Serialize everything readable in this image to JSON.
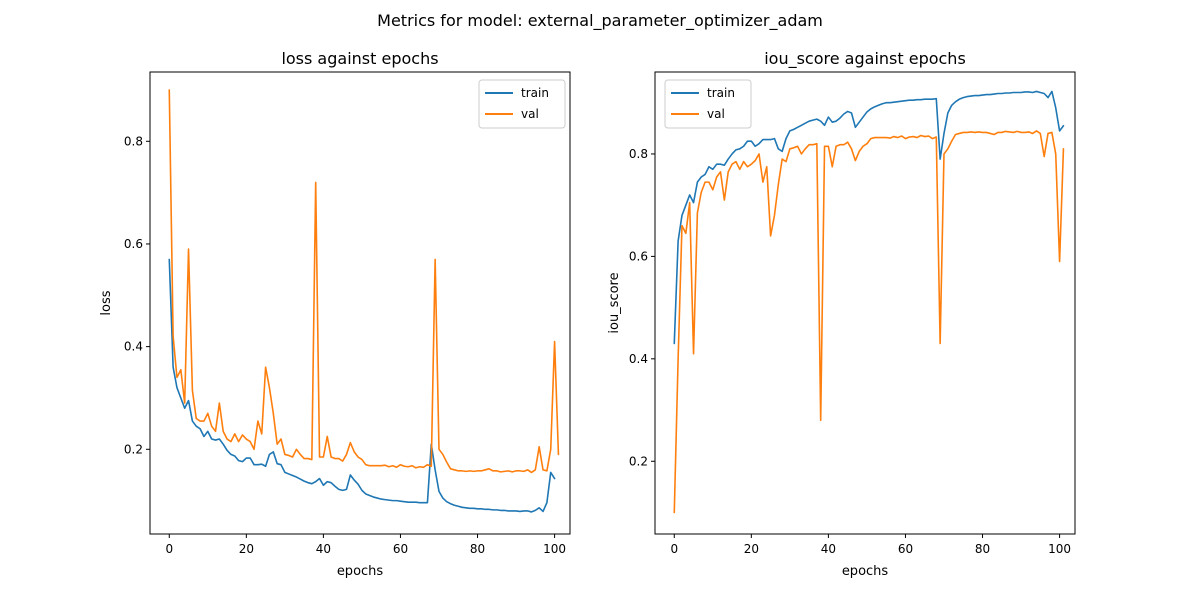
{
  "figure": {
    "suptitle": "Metrics for model: external_parameter_optimizer_adam"
  },
  "colors": {
    "train": "#1f77b4",
    "val": "#ff7f0e"
  },
  "chart_data": [
    {
      "type": "line",
      "title": "loss against epochs",
      "xlabel": "epochs",
      "ylabel": "loss",
      "xlim": [
        -5,
        104
      ],
      "ylim": [
        0.035,
        0.935
      ],
      "xticks": [
        0,
        20,
        40,
        60,
        80,
        100
      ],
      "yticks": [
        0.2,
        0.4,
        0.6,
        0.8
      ],
      "grid": false,
      "legend": "top-right",
      "series": [
        {
          "name": "train",
          "color": "#1f77b4",
          "values": [
            0.57,
            0.36,
            0.32,
            0.3,
            0.28,
            0.295,
            0.255,
            0.245,
            0.24,
            0.225,
            0.235,
            0.22,
            0.218,
            0.22,
            0.21,
            0.198,
            0.19,
            0.187,
            0.178,
            0.176,
            0.183,
            0.183,
            0.17,
            0.17,
            0.171,
            0.167,
            0.19,
            0.195,
            0.172,
            0.17,
            0.155,
            0.152,
            0.149,
            0.146,
            0.142,
            0.138,
            0.135,
            0.133,
            0.137,
            0.143,
            0.13,
            0.137,
            0.135,
            0.128,
            0.122,
            0.12,
            0.122,
            0.15,
            0.14,
            0.132,
            0.12,
            0.113,
            0.11,
            0.107,
            0.105,
            0.103,
            0.102,
            0.101,
            0.1,
            0.1,
            0.099,
            0.098,
            0.097,
            0.097,
            0.097,
            0.096,
            0.096,
            0.096,
            0.21,
            0.16,
            0.118,
            0.105,
            0.098,
            0.094,
            0.091,
            0.089,
            0.087,
            0.086,
            0.085,
            0.085,
            0.084,
            0.084,
            0.083,
            0.083,
            0.082,
            0.082,
            0.081,
            0.081,
            0.08,
            0.08,
            0.08,
            0.079,
            0.08,
            0.08,
            0.078,
            0.081,
            0.086,
            0.079,
            0.096,
            0.155,
            0.143
          ]
        },
        {
          "name": "val",
          "color": "#ff7f0e",
          "values": [
            0.9,
            0.42,
            0.34,
            0.355,
            0.29,
            0.59,
            0.315,
            0.26,
            0.255,
            0.255,
            0.27,
            0.245,
            0.235,
            0.29,
            0.235,
            0.22,
            0.215,
            0.23,
            0.215,
            0.228,
            0.22,
            0.215,
            0.2,
            0.255,
            0.23,
            0.36,
            0.32,
            0.27,
            0.21,
            0.22,
            0.19,
            0.188,
            0.185,
            0.2,
            0.19,
            0.182,
            0.182,
            0.18,
            0.72,
            0.185,
            0.185,
            0.225,
            0.185,
            0.182,
            0.182,
            0.177,
            0.19,
            0.213,
            0.195,
            0.185,
            0.18,
            0.17,
            0.168,
            0.168,
            0.168,
            0.168,
            0.169,
            0.166,
            0.168,
            0.165,
            0.17,
            0.167,
            0.166,
            0.168,
            0.164,
            0.166,
            0.165,
            0.17,
            0.167,
            0.57,
            0.2,
            0.19,
            0.175,
            0.162,
            0.16,
            0.158,
            0.158,
            0.157,
            0.158,
            0.157,
            0.158,
            0.158,
            0.16,
            0.162,
            0.158,
            0.158,
            0.156,
            0.157,
            0.158,
            0.156,
            0.158,
            0.158,
            0.157,
            0.16,
            0.155,
            0.16,
            0.205,
            0.16,
            0.158,
            0.2,
            0.41,
            0.19
          ]
        }
      ]
    },
    {
      "type": "line",
      "title": "iou_score against epochs",
      "xlabel": "epochs",
      "ylabel": "iou_score",
      "xlim": [
        -5,
        104
      ],
      "ylim": [
        0.058,
        0.96
      ],
      "xticks": [
        0,
        20,
        40,
        60,
        80,
        100
      ],
      "yticks": [
        0.2,
        0.4,
        0.6,
        0.8
      ],
      "grid": false,
      "legend": "top-left",
      "series": [
        {
          "name": "train",
          "color": "#1f77b4",
          "values": [
            0.43,
            0.63,
            0.68,
            0.7,
            0.72,
            0.705,
            0.745,
            0.755,
            0.76,
            0.775,
            0.77,
            0.78,
            0.78,
            0.778,
            0.79,
            0.8,
            0.808,
            0.81,
            0.815,
            0.825,
            0.825,
            0.815,
            0.82,
            0.828,
            0.828,
            0.828,
            0.83,
            0.81,
            0.805,
            0.83,
            0.845,
            0.848,
            0.852,
            0.856,
            0.86,
            0.864,
            0.866,
            0.868,
            0.864,
            0.856,
            0.872,
            0.862,
            0.864,
            0.87,
            0.878,
            0.883,
            0.88,
            0.852,
            0.862,
            0.872,
            0.882,
            0.888,
            0.892,
            0.895,
            0.898,
            0.9,
            0.9,
            0.901,
            0.902,
            0.903,
            0.904,
            0.905,
            0.905,
            0.906,
            0.906,
            0.907,
            0.907,
            0.907,
            0.908,
            0.79,
            0.84,
            0.88,
            0.895,
            0.902,
            0.907,
            0.91,
            0.912,
            0.913,
            0.914,
            0.914,
            0.915,
            0.916,
            0.916,
            0.917,
            0.918,
            0.918,
            0.919,
            0.919,
            0.92,
            0.92,
            0.92,
            0.921,
            0.921,
            0.92,
            0.922,
            0.92,
            0.918,
            0.91,
            0.922,
            0.89,
            0.845,
            0.855
          ]
        },
        {
          "name": "val",
          "color": "#ff7f0e",
          "values": [
            0.1,
            0.4,
            0.66,
            0.645,
            0.705,
            0.41,
            0.685,
            0.725,
            0.745,
            0.745,
            0.73,
            0.755,
            0.765,
            0.71,
            0.765,
            0.78,
            0.785,
            0.77,
            0.785,
            0.775,
            0.78,
            0.787,
            0.8,
            0.745,
            0.775,
            0.64,
            0.68,
            0.74,
            0.79,
            0.785,
            0.81,
            0.812,
            0.815,
            0.8,
            0.81,
            0.818,
            0.818,
            0.82,
            0.28,
            0.815,
            0.815,
            0.775,
            0.815,
            0.818,
            0.818,
            0.823,
            0.81,
            0.787,
            0.805,
            0.815,
            0.82,
            0.83,
            0.832,
            0.832,
            0.832,
            0.832,
            0.831,
            0.834,
            0.832,
            0.835,
            0.83,
            0.833,
            0.834,
            0.832,
            0.836,
            0.834,
            0.835,
            0.83,
            0.833,
            0.43,
            0.8,
            0.81,
            0.825,
            0.838,
            0.84,
            0.842,
            0.842,
            0.843,
            0.842,
            0.843,
            0.842,
            0.842,
            0.84,
            0.838,
            0.842,
            0.842,
            0.844,
            0.843,
            0.842,
            0.844,
            0.842,
            0.842,
            0.843,
            0.84,
            0.845,
            0.84,
            0.795,
            0.84,
            0.842,
            0.8,
            0.59,
            0.81
          ]
        }
      ]
    }
  ]
}
